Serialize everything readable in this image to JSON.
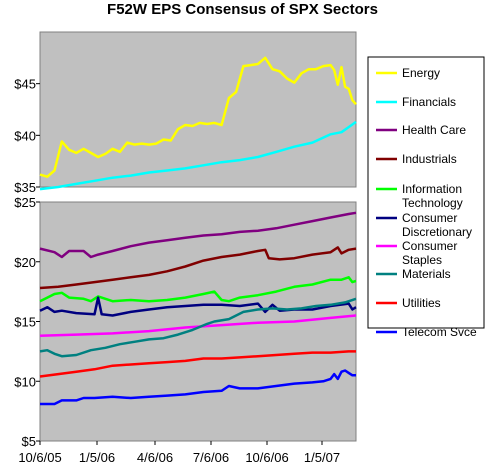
{
  "chart_data": {
    "type": "line",
    "title": "F52W EPS Consensus of SPX Sectors",
    "x_tick_labels": [
      "10/6/05",
      "1/5/06",
      "4/6/06",
      "7/6/06",
      "10/6/06",
      "1/5/07"
    ],
    "top_panel": {
      "y_tick_labels": [
        "$35",
        "$40",
        "$45"
      ],
      "ylim": [
        35,
        50
      ],
      "series": [
        {
          "name": "Energy",
          "color": "#ffff00",
          "points": [
            [
              0,
              36.2
            ],
            [
              2,
              36.0
            ],
            [
              4,
              36.6
            ],
            [
              6,
              39.4
            ],
            [
              8,
              38.6
            ],
            [
              10,
              38.3
            ],
            [
              12,
              38.7
            ],
            [
              14,
              38.3
            ],
            [
              16,
              37.9
            ],
            [
              18,
              38.2
            ],
            [
              20,
              38.7
            ],
            [
              22,
              38.4
            ],
            [
              24,
              39.3
            ],
            [
              26,
              39.1
            ],
            [
              28,
              39.2
            ],
            [
              30,
              39.1
            ],
            [
              32,
              39.2
            ],
            [
              34,
              39.6
            ],
            [
              36,
              39.5
            ],
            [
              38,
              40.6
            ],
            [
              40,
              41.0
            ],
            [
              42,
              40.9
            ],
            [
              44,
              41.2
            ],
            [
              46,
              41.1
            ],
            [
              48,
              41.2
            ],
            [
              50,
              41.0
            ],
            [
              52,
              43.6
            ],
            [
              54,
              44.2
            ],
            [
              56,
              46.7
            ],
            [
              58,
              46.8
            ],
            [
              60,
              46.9
            ],
            [
              62,
              47.5
            ],
            [
              64,
              46.4
            ],
            [
              66,
              46.2
            ],
            [
              68,
              45.5
            ],
            [
              70,
              45.1
            ],
            [
              72,
              46.0
            ],
            [
              74,
              46.4
            ],
            [
              76,
              46.4
            ],
            [
              78,
              46.7
            ],
            [
              80,
              46.8
            ],
            [
              81,
              46.3
            ],
            [
              82,
              44.9
            ],
            [
              83,
              46.6
            ],
            [
              84,
              44.7
            ],
            [
              85,
              44.5
            ],
            [
              86,
              43.4
            ],
            [
              87,
              43.0
            ]
          ]
        },
        {
          "name": "Financials",
          "color": "#00ffff",
          "points": [
            [
              0,
              34.8
            ],
            [
              5,
              35.0
            ],
            [
              10,
              35.3
            ],
            [
              15,
              35.6
            ],
            [
              20,
              35.9
            ],
            [
              25,
              36.1
            ],
            [
              30,
              36.4
            ],
            [
              35,
              36.6
            ],
            [
              40,
              36.8
            ],
            [
              45,
              37.1
            ],
            [
              50,
              37.4
            ],
            [
              55,
              37.6
            ],
            [
              60,
              37.9
            ],
            [
              65,
              38.4
            ],
            [
              70,
              38.9
            ],
            [
              75,
              39.3
            ],
            [
              80,
              40.1
            ],
            [
              83,
              40.3
            ],
            [
              85,
              40.8
            ],
            [
              87,
              41.3
            ]
          ]
        }
      ]
    },
    "bottom_panel": {
      "y_tick_labels": [
        "$5",
        "$10",
        "$15",
        "$20",
        "$25"
      ],
      "ylim": [
        5,
        25
      ],
      "series": [
        {
          "name": "Health Care",
          "color": "#800080",
          "points": [
            [
              0,
              21.1
            ],
            [
              4,
              20.8
            ],
            [
              6,
              20.4
            ],
            [
              8,
              20.9
            ],
            [
              12,
              20.9
            ],
            [
              14,
              20.4
            ],
            [
              16,
              20.6
            ],
            [
              20,
              20.9
            ],
            [
              25,
              21.3
            ],
            [
              30,
              21.6
            ],
            [
              35,
              21.8
            ],
            [
              40,
              22.0
            ],
            [
              45,
              22.2
            ],
            [
              50,
              22.3
            ],
            [
              55,
              22.5
            ],
            [
              60,
              22.6
            ],
            [
              65,
              22.8
            ],
            [
              70,
              23.1
            ],
            [
              75,
              23.4
            ],
            [
              80,
              23.7
            ],
            [
              85,
              24.0
            ],
            [
              87,
              24.1
            ]
          ]
        },
        {
          "name": "Industrials",
          "color": "#800000",
          "points": [
            [
              0,
              17.8
            ],
            [
              5,
              17.9
            ],
            [
              10,
              18.1
            ],
            [
              15,
              18.3
            ],
            [
              20,
              18.5
            ],
            [
              25,
              18.7
            ],
            [
              30,
              18.9
            ],
            [
              35,
              19.2
            ],
            [
              40,
              19.6
            ],
            [
              45,
              20.1
            ],
            [
              50,
              20.4
            ],
            [
              55,
              20.6
            ],
            [
              60,
              20.9
            ],
            [
              62,
              21.0
            ],
            [
              63,
              20.3
            ],
            [
              66,
              20.2
            ],
            [
              70,
              20.3
            ],
            [
              75,
              20.6
            ],
            [
              80,
              20.8
            ],
            [
              82,
              21.2
            ],
            [
              83,
              20.7
            ],
            [
              85,
              21.0
            ],
            [
              87,
              21.1
            ]
          ]
        },
        {
          "name": "Information Technology",
          "color": "#00ff00",
          "points": [
            [
              0,
              16.7
            ],
            [
              2,
              17.0
            ],
            [
              4,
              17.3
            ],
            [
              6,
              17.4
            ],
            [
              8,
              17.0
            ],
            [
              12,
              16.9
            ],
            [
              14,
              16.7
            ],
            [
              16,
              17.1
            ],
            [
              18,
              16.9
            ],
            [
              20,
              16.7
            ],
            [
              25,
              16.8
            ],
            [
              30,
              16.7
            ],
            [
              35,
              16.8
            ],
            [
              40,
              17.0
            ],
            [
              45,
              17.3
            ],
            [
              48,
              17.5
            ],
            [
              50,
              16.8
            ],
            [
              52,
              16.7
            ],
            [
              55,
              17.0
            ],
            [
              60,
              17.2
            ],
            [
              65,
              17.5
            ],
            [
              70,
              17.9
            ],
            [
              75,
              18.1
            ],
            [
              80,
              18.5
            ],
            [
              83,
              18.5
            ],
            [
              85,
              18.7
            ],
            [
              86,
              18.3
            ],
            [
              87,
              18.4
            ]
          ]
        },
        {
          "name": "Consumer Discretionary",
          "color": "#000080",
          "points": [
            [
              0,
              15.9
            ],
            [
              2,
              16.2
            ],
            [
              4,
              15.8
            ],
            [
              6,
              15.9
            ],
            [
              10,
              15.7
            ],
            [
              15,
              15.6
            ],
            [
              16,
              17.0
            ],
            [
              17,
              15.6
            ],
            [
              20,
              15.5
            ],
            [
              25,
              15.8
            ],
            [
              30,
              16.0
            ],
            [
              35,
              16.2
            ],
            [
              40,
              16.3
            ],
            [
              45,
              16.4
            ],
            [
              50,
              16.4
            ],
            [
              55,
              16.3
            ],
            [
              60,
              16.5
            ],
            [
              62,
              15.8
            ],
            [
              64,
              16.4
            ],
            [
              66,
              15.9
            ],
            [
              70,
              16.0
            ],
            [
              75,
              16.0
            ],
            [
              80,
              16.3
            ],
            [
              85,
              16.5
            ],
            [
              86,
              16.0
            ],
            [
              87,
              16.2
            ]
          ]
        },
        {
          "name": "Consumer Staples",
          "color": "#ff00ff",
          "points": [
            [
              0,
              13.8
            ],
            [
              10,
              13.9
            ],
            [
              20,
              14.0
            ],
            [
              30,
              14.2
            ],
            [
              40,
              14.5
            ],
            [
              50,
              14.7
            ],
            [
              60,
              14.9
            ],
            [
              70,
              15.0
            ],
            [
              80,
              15.3
            ],
            [
              87,
              15.5
            ]
          ]
        },
        {
          "name": "Materials",
          "color": "#008080",
          "points": [
            [
              0,
              12.5
            ],
            [
              2,
              12.6
            ],
            [
              4,
              12.3
            ],
            [
              6,
              12.1
            ],
            [
              10,
              12.2
            ],
            [
              14,
              12.6
            ],
            [
              18,
              12.8
            ],
            [
              22,
              13.1
            ],
            [
              26,
              13.3
            ],
            [
              30,
              13.5
            ],
            [
              34,
              13.6
            ],
            [
              38,
              13.9
            ],
            [
              42,
              14.3
            ],
            [
              46,
              14.8
            ],
            [
              48,
              15.0
            ],
            [
              52,
              15.2
            ],
            [
              56,
              15.8
            ],
            [
              60,
              16.0
            ],
            [
              64,
              16.1
            ],
            [
              68,
              16.0
            ],
            [
              72,
              16.1
            ],
            [
              76,
              16.3
            ],
            [
              80,
              16.4
            ],
            [
              84,
              16.6
            ],
            [
              87,
              16.9
            ]
          ]
        },
        {
          "name": "Utilities",
          "color": "#ff0000",
          "points": [
            [
              0,
              10.4
            ],
            [
              5,
              10.6
            ],
            [
              10,
              10.8
            ],
            [
              15,
              11.0
            ],
            [
              20,
              11.3
            ],
            [
              25,
              11.4
            ],
            [
              30,
              11.5
            ],
            [
              35,
              11.6
            ],
            [
              40,
              11.7
            ],
            [
              45,
              11.9
            ],
            [
              50,
              11.9
            ],
            [
              55,
              12.0
            ],
            [
              60,
              12.1
            ],
            [
              65,
              12.2
            ],
            [
              70,
              12.3
            ],
            [
              75,
              12.4
            ],
            [
              80,
              12.4
            ],
            [
              85,
              12.5
            ],
            [
              87,
              12.5
            ]
          ]
        },
        {
          "name": "Telecom Svce",
          "color": "#0000ff",
          "points": [
            [
              0,
              8.1
            ],
            [
              4,
              8.1
            ],
            [
              6,
              8.4
            ],
            [
              10,
              8.4
            ],
            [
              12,
              8.6
            ],
            [
              15,
              8.6
            ],
            [
              20,
              8.7
            ],
            [
              25,
              8.6
            ],
            [
              30,
              8.7
            ],
            [
              35,
              8.8
            ],
            [
              40,
              8.9
            ],
            [
              45,
              9.1
            ],
            [
              50,
              9.2
            ],
            [
              52,
              9.6
            ],
            [
              55,
              9.4
            ],
            [
              60,
              9.4
            ],
            [
              65,
              9.6
            ],
            [
              70,
              9.8
            ],
            [
              75,
              9.9
            ],
            [
              78,
              10.0
            ],
            [
              80,
              10.2
            ],
            [
              81,
              10.6
            ],
            [
              82,
              10.2
            ],
            [
              83,
              10.8
            ],
            [
              84,
              10.9
            ],
            [
              85,
              10.7
            ],
            [
              86,
              10.5
            ],
            [
              87,
              10.5
            ]
          ]
        }
      ]
    },
    "legend": {
      "position": "right",
      "entries": [
        {
          "label": "Energy",
          "color": "#ffff00"
        },
        {
          "label": "Financials",
          "color": "#00ffff"
        },
        {
          "label": "Health Care",
          "color": "#800080"
        },
        {
          "label": "Industrials",
          "color": "#800000"
        },
        {
          "label": "Information Technology",
          "color": "#00ff00"
        },
        {
          "label": "Consumer Discretionary",
          "color": "#000080"
        },
        {
          "label": "Consumer Staples",
          "color": "#ff00ff"
        },
        {
          "label": "Materials",
          "color": "#008080"
        },
        {
          "label": "Utilities",
          "color": "#ff0000"
        },
        {
          "label": "Telecom Svce",
          "color": "#0000ff"
        }
      ]
    },
    "plot_background": "#c0c0c0",
    "grid": false
  }
}
